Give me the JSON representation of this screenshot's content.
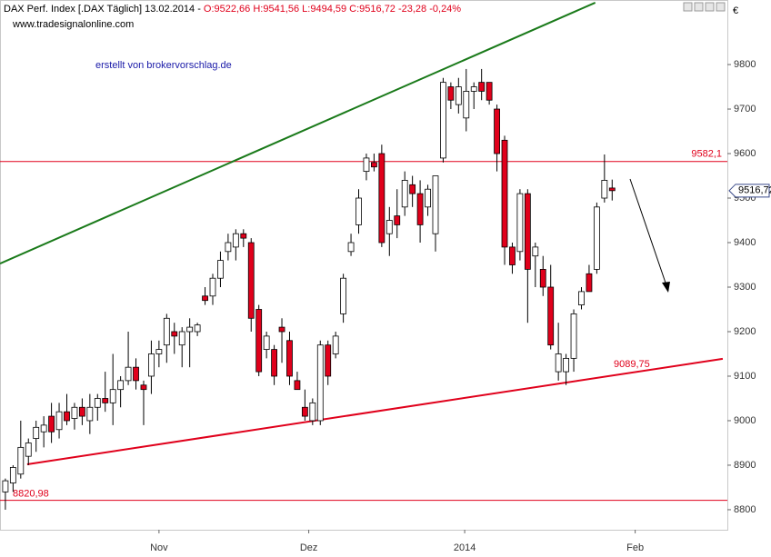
{
  "chart_data": {
    "type": "candlestick",
    "title": "DAX Perf. Index [.DAX  Täglich] 13.02.2014 -",
    "ohlc_text": "O:9522,66 H:9541,56 L:9494,59 C:9516,72 -23,28 -0,24%",
    "subtitle": "www.tradesignalonline.com",
    "annotation": "erstellt von brokervorschlag.de",
    "currency": "€",
    "categories": [
      null,
      null,
      null,
      null,
      null,
      null,
      null,
      null,
      null,
      null,
      null,
      null,
      null,
      null,
      null,
      null,
      null,
      null,
      null,
      null,
      null,
      null,
      null,
      null,
      null,
      null,
      null,
      null,
      null,
      null,
      null,
      null,
      null,
      null,
      null,
      null,
      null,
      null,
      null,
      null,
      null,
      null,
      null,
      null,
      null,
      null,
      null,
      null,
      null,
      null,
      null,
      null,
      null,
      null,
      null,
      null,
      null,
      null,
      null,
      null,
      null,
      null,
      null,
      null,
      null,
      null,
      null,
      null,
      null,
      null,
      null,
      null,
      null,
      null,
      null,
      null,
      null,
      null,
      null,
      null
    ],
    "open": [
      8840,
      8860,
      8880,
      8920,
      8960,
      8975,
      9010,
      8980,
      9020,
      9005,
      9030,
      9000,
      9030,
      9050,
      9040,
      9070,
      9090,
      9120,
      9080,
      9100,
      9150,
      9170,
      9200,
      9170,
      9200,
      9200,
      9280,
      9280,
      9320,
      9380,
      9390,
      9420,
      9400,
      9250,
      9160,
      9160,
      9210,
      9180,
      9090,
      9030,
      9000,
      9000,
      9170,
      9150,
      9240,
      9380,
      9440,
      9560,
      9580,
      9600,
      9420,
      9460,
      9480,
      9530,
      9510,
      9480,
      9420,
      9590,
      9750,
      9710,
      9680,
      9740,
      9760,
      9760,
      9700,
      9630,
      9390,
      9380,
      9510,
      9370,
      9340,
      9300,
      9110,
      9110,
      9140,
      9260,
      9330,
      9340,
      9500,
      9522.66
    ],
    "high": [
      8870,
      8900,
      9000,
      8960,
      9000,
      9010,
      9040,
      9040,
      9060,
      9040,
      9050,
      9060,
      9060,
      9110,
      9150,
      9100,
      9200,
      9140,
      9090,
      9180,
      9180,
      9240,
      9220,
      9210,
      9230,
      9220,
      9300,
      9330,
      9380,
      9420,
      9430,
      9430,
      9410,
      9260,
      9200,
      9170,
      9230,
      9200,
      9110,
      9070,
      9050,
      9180,
      9180,
      9200,
      9330,
      9420,
      9520,
      9600,
      9600,
      9620,
      9480,
      9520,
      9560,
      9550,
      9540,
      9530,
      9550,
      9770,
      9760,
      9770,
      9790,
      9760,
      9790,
      9760,
      9710,
      9640,
      9400,
      9520,
      9520,
      9400,
      9370,
      9350,
      9220,
      9150,
      9250,
      9300,
      9350,
      9490,
      9598,
      9541.56
    ],
    "low": [
      8800,
      8840,
      8870,
      8900,
      8930,
      8940,
      8950,
      8960,
      8990,
      8980,
      8990,
      8970,
      9000,
      9020,
      8990,
      9030,
      9080,
      9070,
      8990,
      9060,
      9120,
      9130,
      9150,
      9120,
      9120,
      9190,
      9260,
      9260,
      9300,
      9360,
      9360,
      9390,
      9200,
      9100,
      9140,
      9080,
      9130,
      9080,
      9070,
      9000,
      8990,
      8990,
      9080,
      9140,
      9220,
      9370,
      9420,
      9540,
      9560,
      9390,
      9370,
      9410,
      9460,
      9480,
      9400,
      9460,
      9380,
      9580,
      9700,
      9690,
      9650,
      9700,
      9720,
      9710,
      9560,
      9350,
      9330,
      9360,
      9220,
      9300,
      9280,
      9160,
      9090,
      9080,
      9110,
      9250,
      9290,
      9330,
      9490,
      9494.59
    ],
    "close": [
      8865,
      8895,
      8940,
      8950,
      8985,
      8990,
      8975,
      9020,
      9000,
      9030,
      9010,
      9030,
      9050,
      9040,
      9070,
      9090,
      9120,
      9090,
      9070,
      9150,
      9160,
      9230,
      9190,
      9200,
      9210,
      9215,
      9270,
      9320,
      9360,
      9400,
      9420,
      9410,
      9230,
      9110,
      9190,
      9100,
      9200,
      9100,
      9070,
      9010,
      9040,
      9170,
      9100,
      9190,
      9320,
      9400,
      9500,
      9590,
      9570,
      9400,
      9450,
      9440,
      9540,
      9510,
      9440,
      9520,
      9550,
      9760,
      9720,
      9750,
      9740,
      9750,
      9740,
      9720,
      9600,
      9390,
      9350,
      9510,
      9340,
      9390,
      9300,
      9170,
      9150,
      9140,
      9240,
      9290,
      9290,
      9480,
      9540,
      9516.72
    ],
    "up_color": "#ffffff",
    "down_color": "#e0001b",
    "xlim": [
      -0.7,
      94
    ],
    "ylim": [
      8755,
      9945
    ],
    "xticks": [
      {
        "value": 20,
        "label": "Nov"
      },
      {
        "value": 39.5,
        "label": "Dez"
      },
      {
        "value": 59.8,
        "label": "2014"
      },
      {
        "value": 82,
        "label": "Feb"
      }
    ],
    "yticks": [
      8800,
      8900,
      9000,
      9100,
      9200,
      9300,
      9400,
      9500,
      9600,
      9700,
      9800
    ],
    "hlines": [
      {
        "value": 9582.1,
        "label": "9582,1",
        "color": "#e0001b"
      },
      {
        "value": 8820.98,
        "label": "8820,98",
        "color": "#e0001b"
      }
    ],
    "trendlines": [
      {
        "color": "#1a7a1a",
        "x": [
          -0.7,
          76.8
        ],
        "values": [
          9353,
          9939
        ]
      },
      {
        "color": "#e0001b",
        "x": [
          2.84,
          93.4
        ],
        "values": [
          8902,
          9139
        ]
      }
    ],
    "trend_label": {
      "value": 9089.75,
      "label": "9089,75"
    },
    "last_price": {
      "value": 9516.72,
      "label": "9516,72"
    }
  }
}
